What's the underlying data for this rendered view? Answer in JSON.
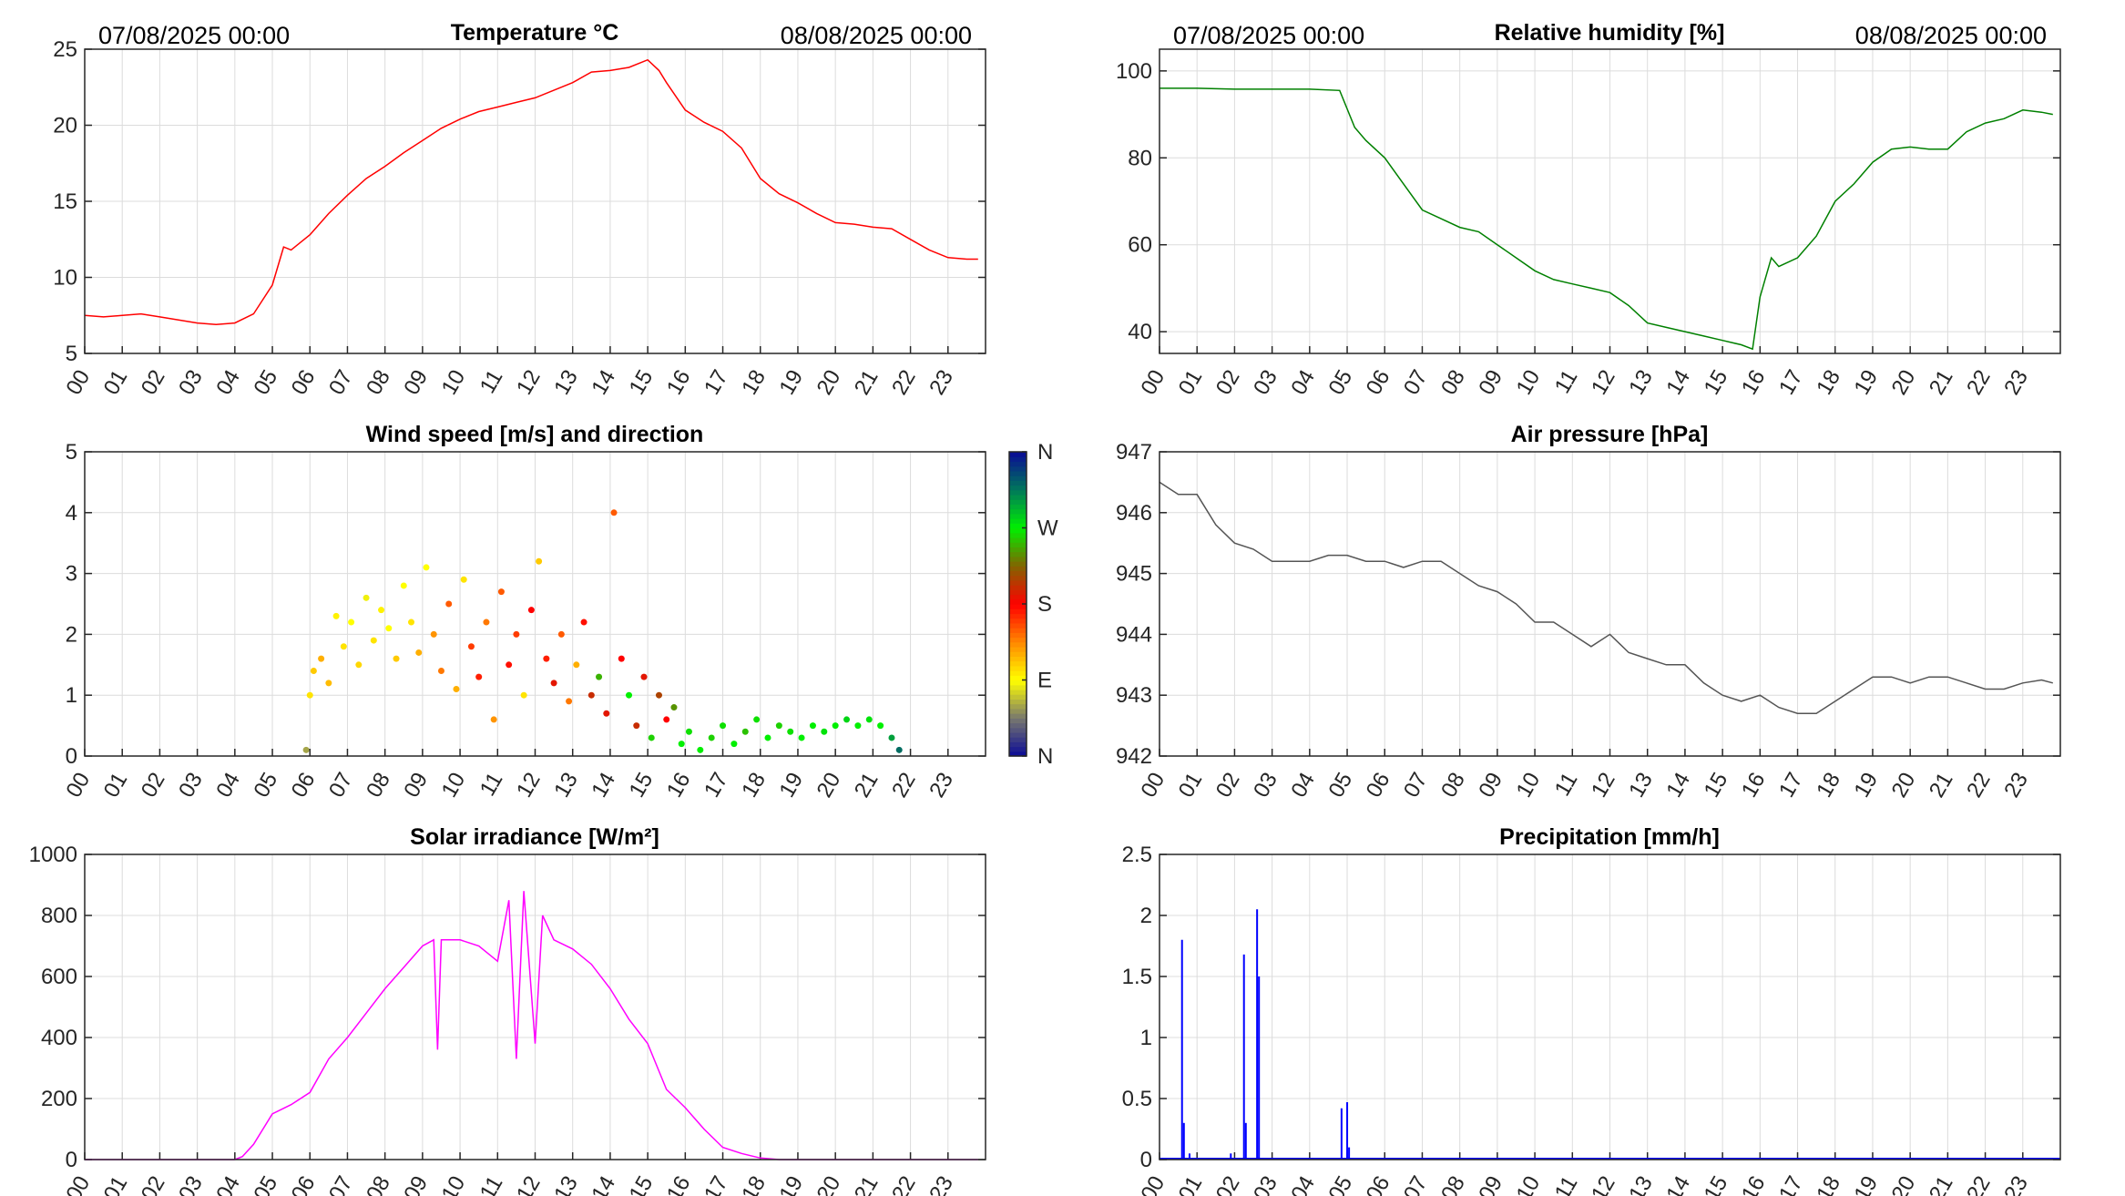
{
  "header": {
    "start_date": "07/08/2025 00:00",
    "end_date": "08/08/2025 00:00"
  },
  "chart_data": [
    {
      "id": "temperature",
      "type": "line",
      "title": "Temperature °C",
      "color": "#ff0000",
      "xlim": [
        0,
        24
      ],
      "ylim": [
        5,
        25
      ],
      "yticks": [
        "5",
        "10",
        "15",
        "20",
        "25"
      ],
      "ytick_values": [
        5,
        10,
        15,
        20,
        25
      ],
      "x": [
        0,
        0.5,
        1,
        1.5,
        2,
        2.5,
        3,
        3.5,
        4,
        4.5,
        5,
        5.3,
        5.5,
        6,
        6.5,
        7,
        7.5,
        8,
        8.5,
        9,
        9.5,
        10,
        10.5,
        11,
        11.5,
        12,
        12.5,
        13,
        13.5,
        14,
        14.5,
        15,
        15.3,
        15.5,
        16,
        16.5,
        17,
        17.5,
        18,
        18.5,
        19,
        19.5,
        20,
        20.5,
        21,
        21.5,
        22,
        22.5,
        23,
        23.5,
        23.8
      ],
      "y": [
        7.5,
        7.4,
        7.5,
        7.6,
        7.4,
        7.2,
        7.0,
        6.9,
        7.0,
        7.6,
        9.5,
        12.0,
        11.8,
        12.8,
        14.2,
        15.4,
        16.5,
        17.3,
        18.2,
        19.0,
        19.8,
        20.4,
        20.9,
        21.2,
        21.5,
        21.8,
        22.3,
        22.8,
        23.5,
        23.6,
        23.8,
        24.3,
        23.6,
        22.8,
        21.0,
        20.2,
        19.6,
        18.5,
        16.5,
        15.5,
        14.9,
        14.2,
        13.6,
        13.5,
        13.3,
        13.2,
        12.5,
        11.8,
        11.3,
        11.2,
        11.2
      ]
    },
    {
      "id": "humidity",
      "type": "line",
      "title": "Relative humidity [%]",
      "color": "#008000",
      "xlim": [
        0,
        24
      ],
      "ylim": [
        35,
        105
      ],
      "yticks": [
        "40",
        "60",
        "80",
        "100"
      ],
      "ytick_values": [
        40,
        60,
        80,
        100
      ],
      "x": [
        0,
        1,
        2,
        3,
        4,
        4.8,
        5.2,
        5.5,
        6,
        6.5,
        7,
        7.5,
        8,
        8.5,
        9,
        9.5,
        10,
        10.5,
        11,
        11.5,
        12,
        12.5,
        13,
        13.5,
        14,
        14.5,
        15,
        15.5,
        15.8,
        16,
        16.3,
        16.5,
        17,
        17.5,
        18,
        18.5,
        19,
        19.5,
        20,
        20.5,
        21,
        21.5,
        22,
        22.5,
        23,
        23.5,
        23.8
      ],
      "y": [
        96,
        96,
        95.8,
        95.8,
        95.8,
        95.5,
        87,
        84,
        80,
        74,
        68,
        66,
        64,
        63,
        60,
        57,
        54,
        52,
        51,
        50,
        49,
        46,
        42,
        41,
        40,
        39,
        38,
        37,
        36,
        48,
        57,
        55,
        57,
        62,
        70,
        74,
        79,
        82,
        82.5,
        82,
        82,
        86,
        88,
        89,
        91,
        90.5,
        90
      ]
    },
    {
      "id": "wind",
      "type": "scatter",
      "title": "Wind speed [m/s] and direction",
      "xlim": [
        0,
        24
      ],
      "ylim": [
        0,
        5
      ],
      "yticks": [
        "0",
        "1",
        "2",
        "3",
        "4",
        "5"
      ],
      "ytick_values": [
        0,
        1,
        2,
        3,
        4,
        5
      ],
      "colorbar": {
        "labels": [
          "N",
          "E",
          "S",
          "W",
          "N"
        ],
        "values": [
          0,
          90,
          180,
          270,
          360
        ]
      },
      "points": [
        [
          5.9,
          0.1,
          60
        ],
        [
          6.0,
          1.0,
          100
        ],
        [
          6.1,
          1.4,
          110
        ],
        [
          6.3,
          1.6,
          120
        ],
        [
          6.5,
          1.2,
          115
        ],
        [
          6.7,
          2.3,
          95
        ],
        [
          6.9,
          1.8,
          100
        ],
        [
          7.1,
          2.2,
          90
        ],
        [
          7.3,
          1.5,
          105
        ],
        [
          7.5,
          2.6,
          85
        ],
        [
          7.7,
          1.9,
          100
        ],
        [
          7.9,
          2.4,
          95
        ],
        [
          8.1,
          2.1,
          90
        ],
        [
          8.3,
          1.6,
          110
        ],
        [
          8.5,
          2.8,
          90
        ],
        [
          8.7,
          2.2,
          100
        ],
        [
          8.9,
          1.7,
          120
        ],
        [
          9.1,
          3.1,
          90
        ],
        [
          9.3,
          2.0,
          130
        ],
        [
          9.5,
          1.4,
          140
        ],
        [
          9.7,
          2.5,
          150
        ],
        [
          9.9,
          1.1,
          120
        ],
        [
          10.1,
          2.9,
          100
        ],
        [
          10.3,
          1.8,
          160
        ],
        [
          10.5,
          1.3,
          170
        ],
        [
          10.7,
          2.2,
          140
        ],
        [
          10.9,
          0.6,
          130
        ],
        [
          11.1,
          2.7,
          150
        ],
        [
          11.3,
          1.5,
          175
        ],
        [
          11.5,
          2.0,
          160
        ],
        [
          11.7,
          1.0,
          100
        ],
        [
          11.9,
          2.4,
          180
        ],
        [
          12.1,
          3.2,
          110
        ],
        [
          12.3,
          1.6,
          170
        ],
        [
          12.5,
          1.2,
          190
        ],
        [
          12.7,
          2.0,
          150
        ],
        [
          12.9,
          0.9,
          140
        ],
        [
          13.1,
          1.5,
          120
        ],
        [
          13.3,
          2.2,
          175
        ],
        [
          13.5,
          1.0,
          200
        ],
        [
          13.7,
          1.3,
          250
        ],
        [
          13.9,
          0.7,
          190
        ],
        [
          14.1,
          4.0,
          150
        ],
        [
          14.3,
          1.6,
          180
        ],
        [
          14.5,
          1.0,
          270
        ],
        [
          14.7,
          0.5,
          200
        ],
        [
          14.9,
          1.3,
          190
        ],
        [
          15.1,
          0.3,
          260
        ],
        [
          15.3,
          1.0,
          210
        ],
        [
          15.5,
          0.6,
          180
        ],
        [
          15.7,
          0.8,
          240
        ],
        [
          15.9,
          0.2,
          270
        ],
        [
          16.1,
          0.4,
          265
        ],
        [
          16.4,
          0.1,
          270
        ],
        [
          16.7,
          0.3,
          260
        ],
        [
          17.0,
          0.5,
          265
        ],
        [
          17.3,
          0.2,
          270
        ],
        [
          17.6,
          0.4,
          255
        ],
        [
          17.9,
          0.6,
          265
        ],
        [
          18.2,
          0.3,
          270
        ],
        [
          18.5,
          0.5,
          260
        ],
        [
          18.8,
          0.4,
          265
        ],
        [
          19.1,
          0.3,
          270
        ],
        [
          19.4,
          0.5,
          270
        ],
        [
          19.7,
          0.4,
          275
        ],
        [
          20.0,
          0.5,
          270
        ],
        [
          20.3,
          0.6,
          280
        ],
        [
          20.6,
          0.5,
          270
        ],
        [
          20.9,
          0.6,
          275
        ],
        [
          21.2,
          0.5,
          270
        ],
        [
          21.5,
          0.3,
          300
        ],
        [
          21.7,
          0.1,
          320
        ]
      ]
    },
    {
      "id": "pressure",
      "type": "line",
      "title": "Air pressure [hPa]",
      "color": "#555555",
      "xlim": [
        0,
        24
      ],
      "ylim": [
        942,
        947
      ],
      "yticks": [
        "942",
        "943",
        "944",
        "945",
        "946",
        "947"
      ],
      "ytick_values": [
        942,
        943,
        944,
        945,
        946,
        947
      ],
      "x": [
        0,
        0.5,
        1,
        1.5,
        2,
        2.5,
        3,
        3.5,
        4,
        4.5,
        5,
        5.5,
        6,
        6.5,
        7,
        7.5,
        8,
        8.5,
        9,
        9.5,
        10,
        10.5,
        11,
        11.5,
        12,
        12.5,
        13,
        13.5,
        14,
        14.5,
        15,
        15.5,
        16,
        16.5,
        17,
        17.5,
        18,
        18.5,
        19,
        19.5,
        20,
        20.5,
        21,
        21.5,
        22,
        22.5,
        23,
        23.5,
        23.8
      ],
      "y": [
        946.5,
        946.3,
        946.3,
        945.8,
        945.5,
        945.4,
        945.2,
        945.2,
        945.2,
        945.3,
        945.3,
        945.2,
        945.2,
        945.1,
        945.2,
        945.2,
        945.0,
        944.8,
        944.7,
        944.5,
        944.2,
        944.2,
        944.0,
        943.8,
        944.0,
        943.7,
        943.6,
        943.5,
        943.5,
        943.2,
        943.0,
        942.9,
        943.0,
        942.8,
        942.7,
        942.7,
        942.9,
        943.1,
        943.3,
        943.3,
        943.2,
        943.3,
        943.3,
        943.2,
        943.1,
        943.1,
        943.2,
        943.25,
        943.2
      ]
    },
    {
      "id": "solar",
      "type": "line",
      "title": "Solar irradiance [W/m²]",
      "color": "#ff00ff",
      "xlim": [
        0,
        24
      ],
      "ylim": [
        0,
        1000
      ],
      "yticks": [
        "0",
        "200",
        "400",
        "600",
        "800",
        "1000"
      ],
      "ytick_values": [
        0,
        200,
        400,
        600,
        800,
        1000
      ],
      "x": [
        0,
        4,
        4.2,
        4.5,
        5,
        5.5,
        6,
        6.5,
        7,
        7.5,
        8,
        8.5,
        9,
        9.3,
        9.4,
        9.5,
        10,
        10.5,
        11,
        11.3,
        11.5,
        11.7,
        12,
        12.2,
        12.5,
        13,
        13.5,
        14,
        14.5,
        15,
        15.5,
        16,
        16.5,
        17,
        17.5,
        18,
        18.5,
        23.8
      ],
      "y": [
        0,
        0,
        10,
        50,
        150,
        180,
        220,
        330,
        400,
        480,
        560,
        630,
        700,
        720,
        360,
        720,
        720,
        700,
        650,
        850,
        330,
        880,
        380,
        800,
        720,
        690,
        640,
        560,
        460,
        380,
        230,
        170,
        100,
        40,
        20,
        5,
        0,
        0
      ]
    },
    {
      "id": "precipitation",
      "type": "bar",
      "title": "Precipitation [mm/h]",
      "color": "#0000ff",
      "xlim": [
        0,
        24
      ],
      "ylim": [
        0,
        2.5
      ],
      "yticks": [
        "0",
        "0.5",
        "1",
        "1.5",
        "2",
        "2.5"
      ],
      "ytick_values": [
        0,
        0.5,
        1,
        1.5,
        2,
        2.5
      ],
      "x": [
        0.6,
        0.65,
        0.8,
        1.9,
        2.25,
        2.3,
        2.6,
        2.65,
        4.85,
        5.0,
        5.05
      ],
      "y": [
        1.8,
        0.3,
        0.05,
        0.05,
        1.68,
        0.3,
        2.05,
        1.5,
        0.42,
        0.47,
        0.1
      ]
    }
  ],
  "xticks": [
    "00",
    "01",
    "02",
    "03",
    "04",
    "05",
    "06",
    "07",
    "08",
    "09",
    "10",
    "11",
    "12",
    "13",
    "14",
    "15",
    "16",
    "17",
    "18",
    "19",
    "20",
    "21",
    "22",
    "23"
  ]
}
